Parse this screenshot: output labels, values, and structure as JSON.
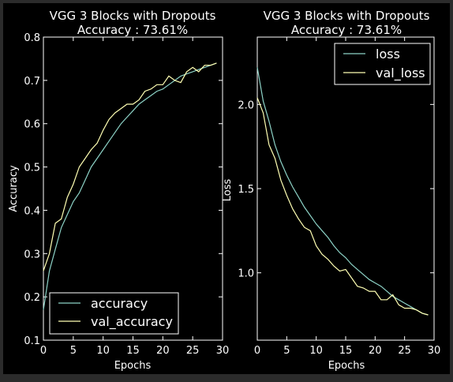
{
  "chart_data": [
    {
      "type": "line",
      "title": "VGG 3 Blocks with Dropouts",
      "subtitle": "Accuracy : 73.61%",
      "xlabel": "Epochs",
      "ylabel": "Accuracy",
      "xlim": [
        0,
        30
      ],
      "ylim": [
        0.1,
        0.8
      ],
      "xticks": [
        "0",
        "5",
        "10",
        "15",
        "20",
        "25",
        "30"
      ],
      "yticks": [
        "0.1",
        "0.2",
        "0.3",
        "0.4",
        "0.5",
        "0.6",
        "0.7",
        "0.8"
      ],
      "legend_position": "lower-left",
      "x": [
        0,
        1,
        2,
        3,
        4,
        5,
        6,
        7,
        8,
        9,
        10,
        11,
        12,
        13,
        14,
        15,
        16,
        17,
        18,
        19,
        20,
        21,
        22,
        23,
        24,
        25,
        26,
        27,
        28,
        29
      ],
      "series": [
        {
          "name": "accuracy",
          "color": "#8dd3c7",
          "values": [
            0.17,
            0.26,
            0.31,
            0.36,
            0.39,
            0.42,
            0.44,
            0.47,
            0.5,
            0.52,
            0.54,
            0.56,
            0.58,
            0.6,
            0.615,
            0.63,
            0.645,
            0.655,
            0.665,
            0.675,
            0.68,
            0.69,
            0.7,
            0.71,
            0.715,
            0.72,
            0.725,
            0.73,
            0.735,
            0.74
          ]
        },
        {
          "name": "val_accuracy",
          "color": "#ffffb3",
          "values": [
            0.26,
            0.3,
            0.37,
            0.38,
            0.43,
            0.46,
            0.5,
            0.52,
            0.54,
            0.555,
            0.585,
            0.61,
            0.625,
            0.635,
            0.645,
            0.645,
            0.655,
            0.675,
            0.68,
            0.69,
            0.69,
            0.71,
            0.7,
            0.695,
            0.72,
            0.73,
            0.72,
            0.735,
            0.735,
            0.74
          ]
        }
      ]
    },
    {
      "type": "line",
      "title": "VGG 3 Blocks with Dropouts",
      "subtitle": "Accuracy : 73.61%",
      "xlabel": "Epochs",
      "ylabel": "Loss",
      "xlim": [
        0,
        30
      ],
      "ylim": [
        0.6,
        2.4
      ],
      "xticks": [
        "0",
        "5",
        "10",
        "15",
        "20",
        "25",
        "30"
      ],
      "yticks": [
        "1.0",
        "1.5",
        "2.0"
      ],
      "legend_position": "upper-right",
      "x": [
        0,
        1,
        2,
        3,
        4,
        5,
        6,
        7,
        8,
        9,
        10,
        11,
        12,
        13,
        14,
        15,
        16,
        17,
        18,
        19,
        20,
        21,
        22,
        23,
        24,
        25,
        26,
        27,
        28,
        29
      ],
      "series": [
        {
          "name": "loss",
          "color": "#8dd3c7",
          "values": [
            2.22,
            2.02,
            1.9,
            1.76,
            1.66,
            1.58,
            1.51,
            1.45,
            1.39,
            1.34,
            1.29,
            1.25,
            1.21,
            1.16,
            1.12,
            1.09,
            1.05,
            1.02,
            0.99,
            0.96,
            0.94,
            0.92,
            0.89,
            0.86,
            0.84,
            0.82,
            0.8,
            0.78,
            0.76,
            0.75
          ]
        },
        {
          "name": "val_loss",
          "color": "#ffffb3",
          "values": [
            2.04,
            1.95,
            1.76,
            1.68,
            1.55,
            1.46,
            1.38,
            1.32,
            1.27,
            1.25,
            1.16,
            1.11,
            1.08,
            1.04,
            1.01,
            1.02,
            0.97,
            0.92,
            0.91,
            0.89,
            0.89,
            0.84,
            0.84,
            0.87,
            0.81,
            0.79,
            0.79,
            0.78,
            0.76,
            0.75
          ]
        }
      ]
    }
  ]
}
